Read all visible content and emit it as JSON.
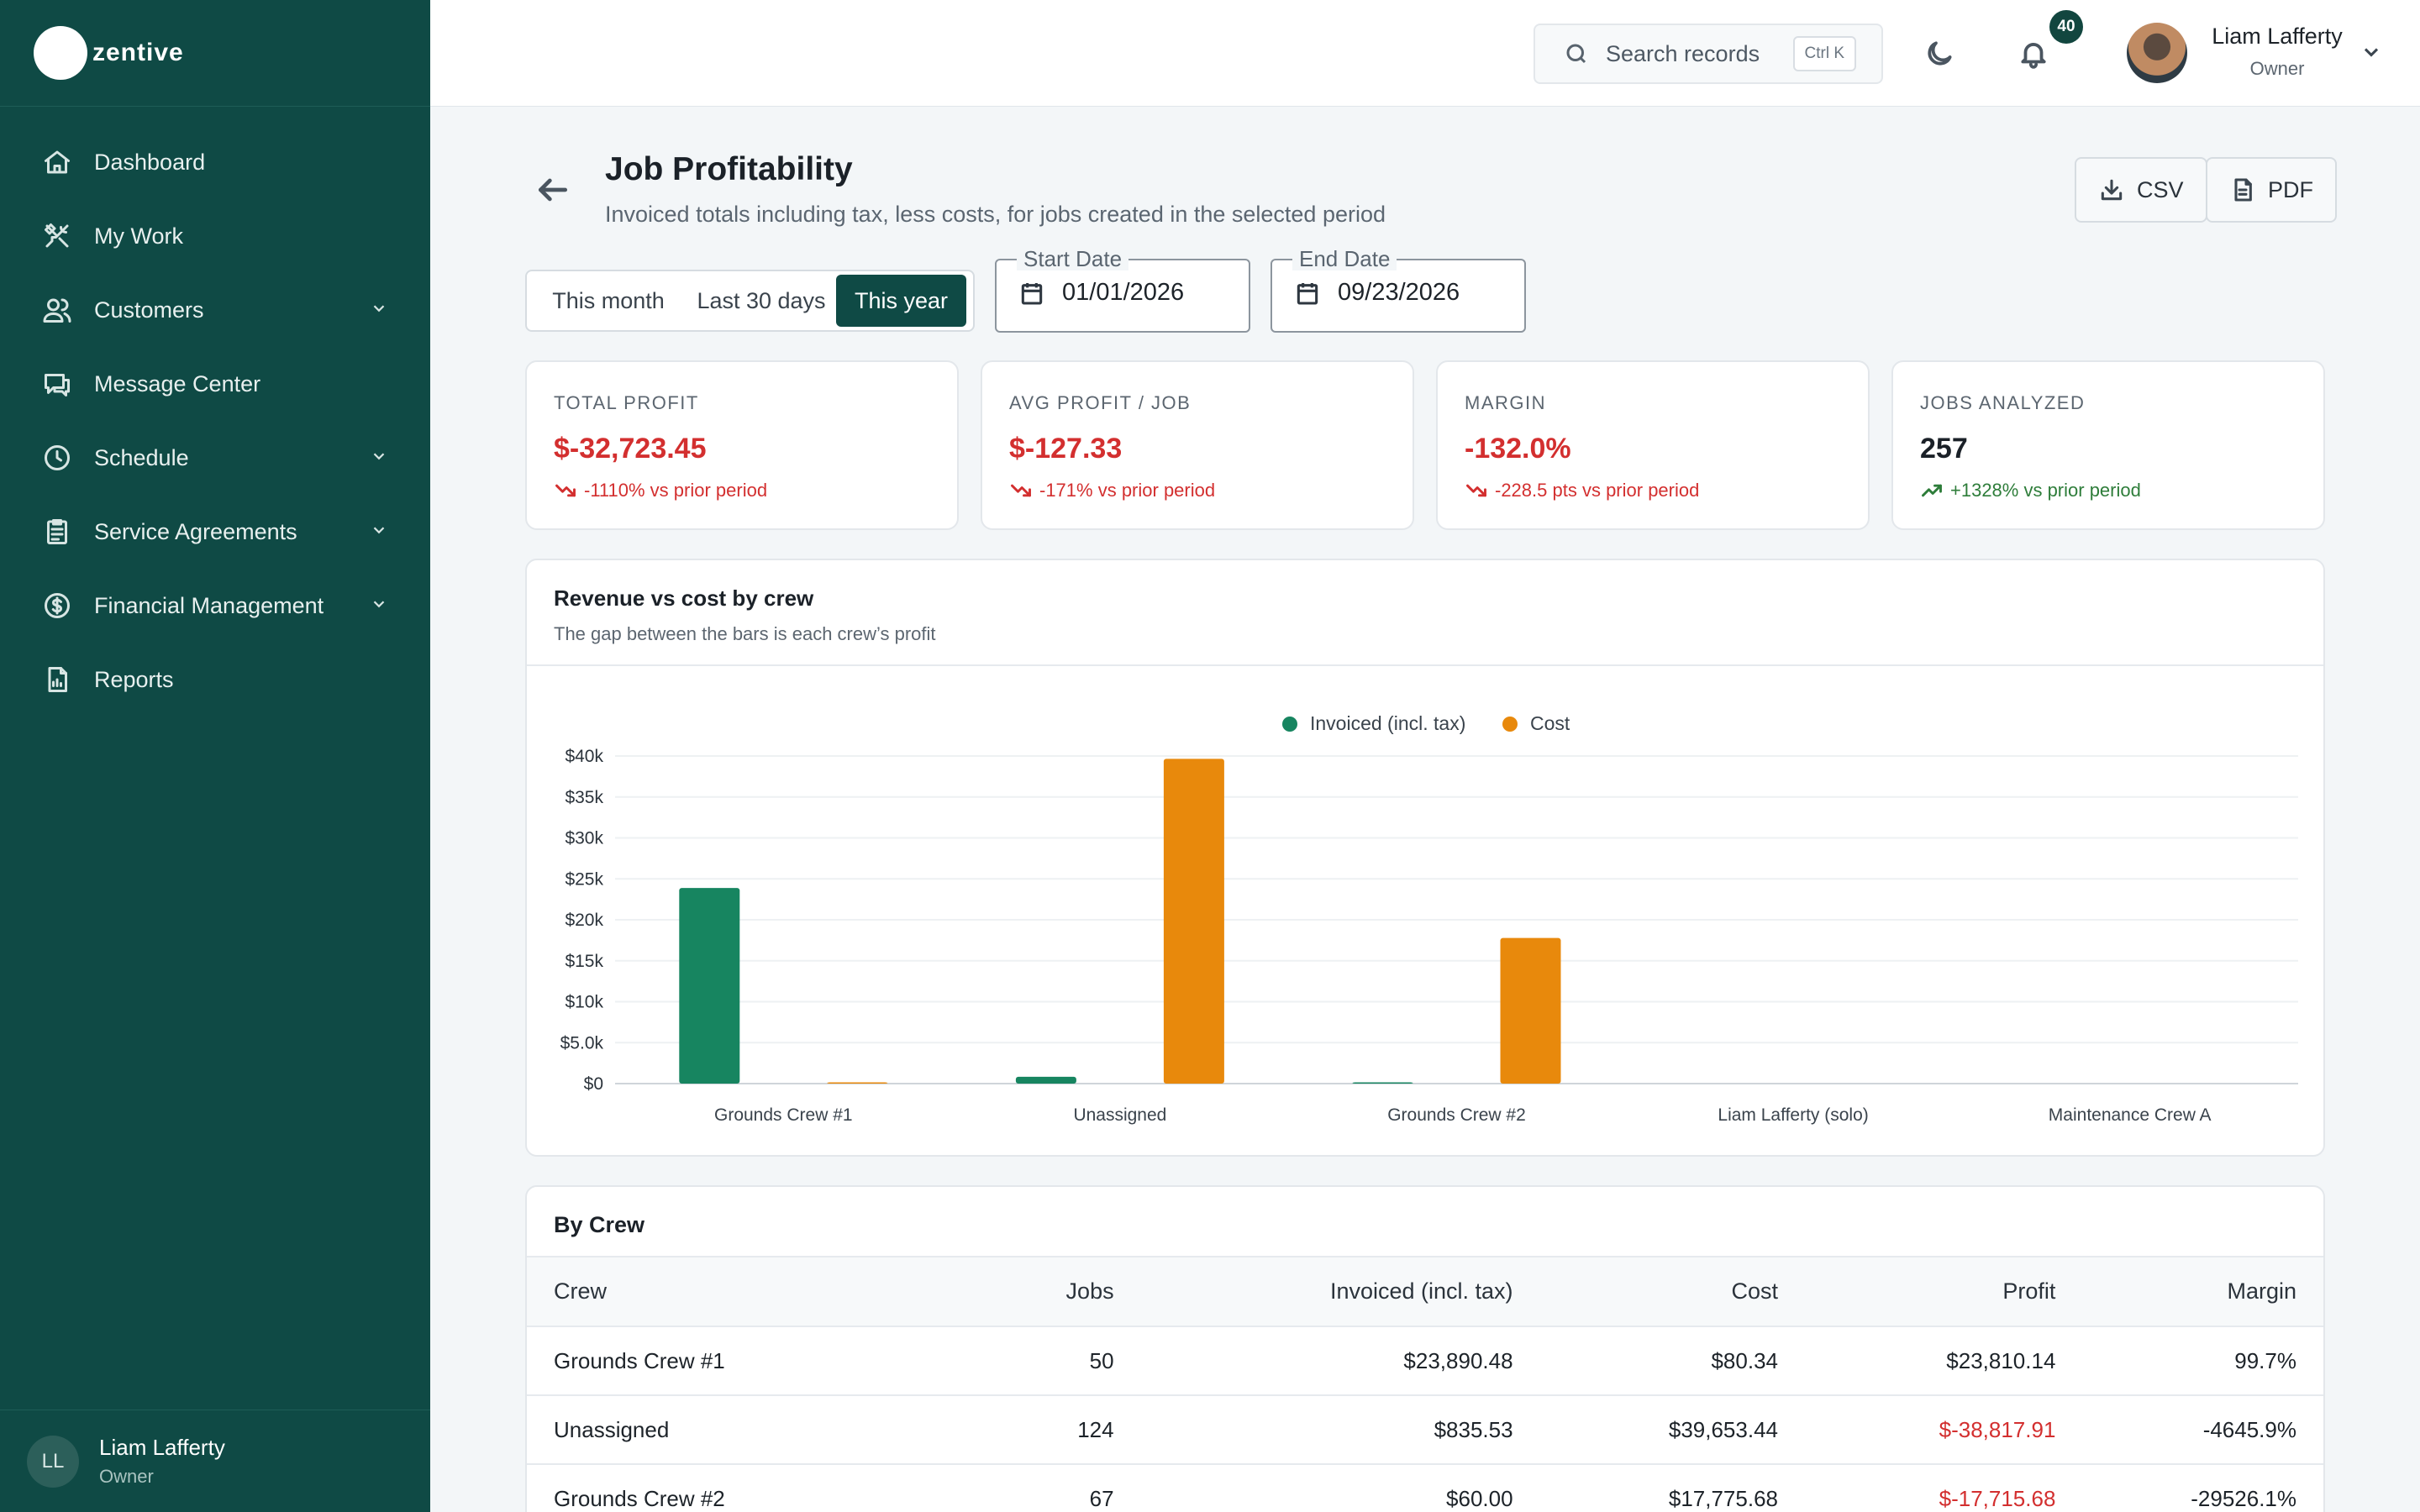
{
  "brand": {
    "name": "zentive"
  },
  "sidebar": {
    "items": [
      {
        "label": "Dashboard",
        "icon": "home-icon",
        "expandable": false
      },
      {
        "label": "My Work",
        "icon": "tools-icon",
        "expandable": false
      },
      {
        "label": "Customers",
        "icon": "users-icon",
        "expandable": true
      },
      {
        "label": "Message Center",
        "icon": "chat-icon",
        "expandable": false
      },
      {
        "label": "Schedule",
        "icon": "clock-icon",
        "expandable": true
      },
      {
        "label": "Service Agreements",
        "icon": "clipboard-icon",
        "expandable": true
      },
      {
        "label": "Financial Management",
        "icon": "dollar-icon",
        "expandable": true
      },
      {
        "label": "Reports",
        "icon": "report-icon",
        "expandable": false
      }
    ],
    "user": {
      "initials": "LL",
      "name": "Liam Lafferty",
      "role": "Owner"
    }
  },
  "topbar": {
    "search_placeholder": "Search records",
    "search_shortcut": "Ctrl K",
    "notification_count": "40",
    "user_name": "Liam Lafferty",
    "user_role": "Owner"
  },
  "page": {
    "title": "Job Profitability",
    "subtitle": "Invoiced totals including tax, less costs, for jobs created in the selected period",
    "export_csv": "CSV",
    "export_pdf": "PDF"
  },
  "filters": {
    "ranges": [
      "This month",
      "Last 30 days",
      "This year"
    ],
    "active_range": "This year",
    "start_label": "Start Date",
    "start_value": "01/01/2026",
    "end_label": "End Date",
    "end_value": "09/23/2026"
  },
  "kpis": [
    {
      "label": "TOTAL PROFIT",
      "value": "$-32,723.45",
      "delta": "-1110% vs prior period",
      "trend": "down"
    },
    {
      "label": "AVG PROFIT / JOB",
      "value": "$-127.33",
      "delta": "-171% vs prior period",
      "trend": "down"
    },
    {
      "label": "MARGIN",
      "value": "-132.0%",
      "delta": "-228.5 pts vs prior period",
      "trend": "down"
    },
    {
      "label": "JOBS ANALYZED",
      "value": "257",
      "delta": "+1328% vs prior period",
      "trend": "up"
    }
  ],
  "chart_card": {
    "title": "Revenue vs cost by crew",
    "subtitle": "The gap between the bars is each crew’s profit"
  },
  "chart_data": {
    "type": "bar",
    "categories": [
      "Grounds Crew #1",
      "Unassigned",
      "Grounds Crew #2",
      "Liam Lafferty (solo)",
      "Maintenance Crew A"
    ],
    "series": [
      {
        "name": "Invoiced (incl. tax)",
        "color": "#178560",
        "values": [
          23890.48,
          835.53,
          60.0,
          0,
          0
        ]
      },
      {
        "name": "Cost",
        "color": "#e8890c",
        "values": [
          80.34,
          39653.44,
          17775.68,
          0,
          0
        ]
      }
    ],
    "y_ticks": [
      "$0",
      "$5.0k",
      "$10k",
      "$15k",
      "$20k",
      "$25k",
      "$30k",
      "$35k",
      "$40k"
    ],
    "ylim": [
      0,
      40000
    ],
    "legend": "top-center",
    "grid": true
  },
  "table": {
    "title": "By Crew",
    "columns": [
      "Crew",
      "Jobs",
      "Invoiced (incl. tax)",
      "Cost",
      "Profit",
      "Margin"
    ],
    "rows": [
      {
        "crew": "Grounds Crew #1",
        "jobs": "50",
        "invoiced": "$23,890.48",
        "cost": "$80.34",
        "profit": "$23,810.14",
        "margin": "99.7%",
        "profit_negative": false
      },
      {
        "crew": "Unassigned",
        "jobs": "124",
        "invoiced": "$835.53",
        "cost": "$39,653.44",
        "profit": "$-38,817.91",
        "margin": "-4645.9%",
        "profit_negative": true
      },
      {
        "crew": "Grounds Crew #2",
        "jobs": "67",
        "invoiced": "$60.00",
        "cost": "$17,775.68",
        "profit": "$-17,715.68",
        "margin": "-29526.1%",
        "profit_negative": true
      }
    ]
  }
}
